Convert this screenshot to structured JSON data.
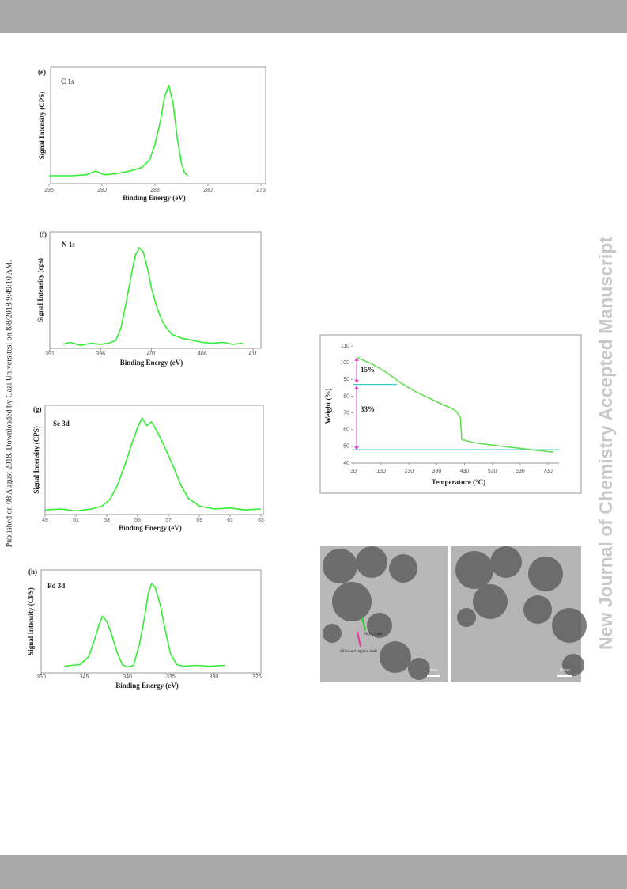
{
  "side_note": "Published on 08 August 2018. Downloaded by Gazi Universitesi on 8/8/2018 9:49:10 AM.",
  "watermark": "New Journal of Chemistry Accepted Manuscript",
  "tem": {
    "labels": [
      "Fe₃O₄ Core",
      "Silica and organic shell"
    ],
    "scale_bars": [
      "60nm",
      "100nm"
    ]
  },
  "chart_data": [
    {
      "type": "line",
      "panel": "(e)",
      "title": "C 1s",
      "x_label": "Binding Energy (eV)",
      "y_label": "Signal Intensity (CPS)",
      "color": "#33ee33",
      "x": [
        295,
        293,
        291.5,
        290.6,
        289.8,
        288.8,
        287.8,
        287,
        286.2,
        285.5,
        285,
        284.5,
        284.1,
        283.7,
        283.3,
        282.9,
        282.5,
        282.2,
        281.9
      ],
      "values": [
        5,
        5,
        6,
        10,
        6,
        7,
        9,
        11,
        14,
        22,
        38,
        62,
        88,
        100,
        82,
        45,
        18,
        8,
        5
      ],
      "xlim": [
        295,
        275
      ],
      "xticks": [
        295,
        290,
        285,
        280,
        275
      ],
      "ylim": [
        0,
        100
      ]
    },
    {
      "type": "line",
      "panel": "(f)",
      "title": "N 1s",
      "x_label": "Binding Energy (eV)",
      "y_label": "Signal Intensity (cps)",
      "color": "#33ee33",
      "x": [
        392.3,
        393,
        394,
        395,
        396,
        396.8,
        397.5,
        398,
        398.5,
        399,
        399.4,
        399.8,
        400.2,
        400.6,
        401,
        401.5,
        402,
        402.5,
        403,
        404,
        405,
        406,
        407,
        408,
        409,
        410
      ],
      "values": [
        4,
        6,
        3,
        5,
        4,
        5,
        8,
        20,
        45,
        72,
        92,
        100,
        96,
        80,
        60,
        42,
        28,
        20,
        14,
        10,
        8,
        6,
        5,
        6,
        4,
        5
      ],
      "xlim": [
        391,
        411
      ],
      "xticks": [
        391,
        396,
        401,
        406,
        411
      ],
      "ylim": [
        0,
        100
      ]
    },
    {
      "type": "line",
      "panel": "(g)",
      "title": "Se 3d",
      "x_label": "Binding Energy (eV)",
      "y_label": "Signal Intensity (CPS)",
      "color": "#33ee33",
      "x": [
        49,
        50,
        51,
        52,
        52.7,
        53.2,
        53.7,
        54.2,
        54.6,
        55,
        55.3,
        55.6,
        55.9,
        56.3,
        56.8,
        57.3,
        57.8,
        58.3,
        59,
        60,
        61,
        62,
        63
      ],
      "values": [
        4,
        5,
        3,
        5,
        8,
        15,
        30,
        52,
        72,
        90,
        100,
        92,
        96,
        85,
        68,
        50,
        30,
        16,
        8,
        5,
        6,
        4,
        5
      ],
      "xlim": [
        49,
        63
      ],
      "xticks": [
        49,
        51,
        53,
        55,
        57,
        59,
        61,
        63
      ],
      "ylim": [
        0,
        100
      ]
    },
    {
      "type": "line",
      "panel": "(h)",
      "title": "Pd 3d",
      "x_label": "Binding Energy  (eV)",
      "y_label": "Signal Intensity (CPS)",
      "color": "#33ee33",
      "x": [
        347.3,
        346.5,
        345.5,
        344.5,
        343.8,
        343.3,
        342.9,
        342.4,
        341.8,
        341.2,
        340.6,
        340,
        339.3,
        338.6,
        338,
        337.6,
        337.2,
        336.8,
        336.2,
        335.6,
        335,
        334.3,
        333.5,
        332,
        330.5,
        328.7
      ],
      "values": [
        4,
        5,
        6,
        15,
        35,
        52,
        62,
        56,
        40,
        20,
        6,
        3,
        5,
        30,
        62,
        88,
        100,
        96,
        75,
        45,
        18,
        6,
        4,
        5,
        4,
        5
      ],
      "xlim": [
        350,
        325
      ],
      "xticks": [
        350,
        345,
        340,
        335,
        330,
        325
      ],
      "ylim": [
        0,
        100
      ]
    },
    {
      "type": "line",
      "x_label": "Temperature (°C)",
      "y_label": "Weight (%)",
      "color": "#66dd55",
      "x": [
        44,
        100,
        150,
        200,
        250,
        300,
        350,
        380,
        400,
        415,
        418,
        420,
        470,
        570,
        670,
        750
      ],
      "values": [
        103,
        99,
        94,
        88,
        83,
        79,
        75,
        73,
        71,
        67,
        60,
        54,
        52,
        50,
        48,
        46.5
      ],
      "xlim": [
        30,
        770
      ],
      "xticks": [
        30,
        130,
        230,
        330,
        430,
        530,
        630,
        730
      ],
      "ylim": [
        40,
        110
      ],
      "yticks": [
        40,
        50,
        60,
        70,
        80,
        90,
        100,
        110
      ],
      "hlines": [
        87,
        48
      ],
      "hline_color": "#33cccc",
      "annotations": [
        "15%",
        "33%"
      ]
    }
  ]
}
